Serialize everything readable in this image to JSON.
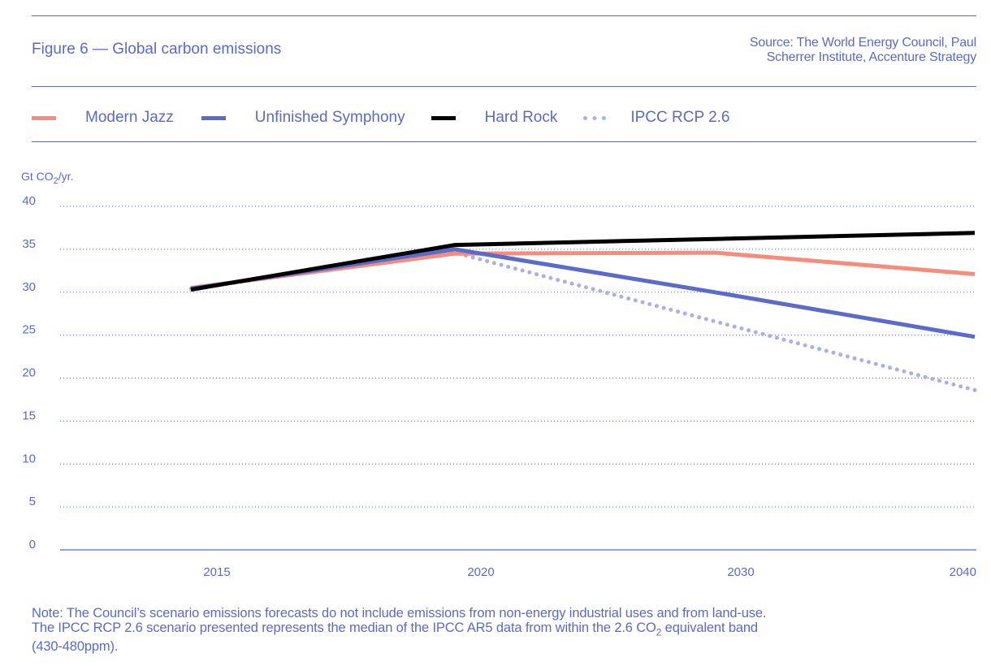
{
  "header": {
    "title": "Figure 6 — Global carbon emissions",
    "source_line1": "Source: The World Energy Council, Paul",
    "source_line2": "Scherrer Institute, Accenture Strategy"
  },
  "legend": [
    {
      "label": "Modern Jazz",
      "color": "#f58c7c",
      "style": "solid"
    },
    {
      "label": "Unfinished Symphony",
      "color": "#5b6bc9",
      "style": "solid"
    },
    {
      "label": "Hard Rock",
      "color": "#000000",
      "style": "solid"
    },
    {
      "label": "IPCC RCP 2.6",
      "color": "#a9b0e6",
      "style": "dotted"
    }
  ],
  "unit": {
    "prefix": "Gt CO",
    "sub": "2",
    "suffix": "/yr."
  },
  "note": {
    "line1": "Note: The Council’s scenario emissions forecasts do not include emissions from non-energy industrial uses and from land-use.",
    "line2a": "The IPCC RCP 2.6 scenario presented represents the median of the IPCC AR5 data from within the 2.6 CO",
    "line2sub": "2",
    "line2b": " equivalent band",
    "line3": "(430-480ppm)."
  },
  "colors": {
    "accent": "#5a6ac8",
    "grid": "#5a6ac8"
  },
  "chart_data": {
    "type": "line",
    "title": "Figure 6 — Global carbon emissions",
    "xlabel": "",
    "ylabel": "Gt CO2/yr.",
    "categories": [
      "2015",
      "2020",
      "2030",
      "2040"
    ],
    "ylim": [
      0,
      40
    ],
    "yticks": [
      0,
      5,
      10,
      15,
      20,
      25,
      30,
      35,
      40
    ],
    "grid": true,
    "legend_position": "top",
    "series": [
      {
        "name": "Modern Jazz",
        "color": "#f58c7c",
        "style": "solid",
        "values": [
          30.5,
          34.5,
          34.6,
          32.1
        ]
      },
      {
        "name": "Unfinished Symphony",
        "color": "#5b6bc9",
        "style": "solid",
        "values": [
          30.4,
          35.0,
          30.0,
          24.8
        ]
      },
      {
        "name": "Hard Rock",
        "color": "#000000",
        "style": "solid",
        "values": [
          30.3,
          35.5,
          36.2,
          36.9
        ]
      },
      {
        "name": "IPCC RCP 2.6",
        "color": "#a9b0e6",
        "style": "dotted",
        "values": [
          30.4,
          34.6,
          26.6,
          18.6
        ]
      }
    ]
  }
}
